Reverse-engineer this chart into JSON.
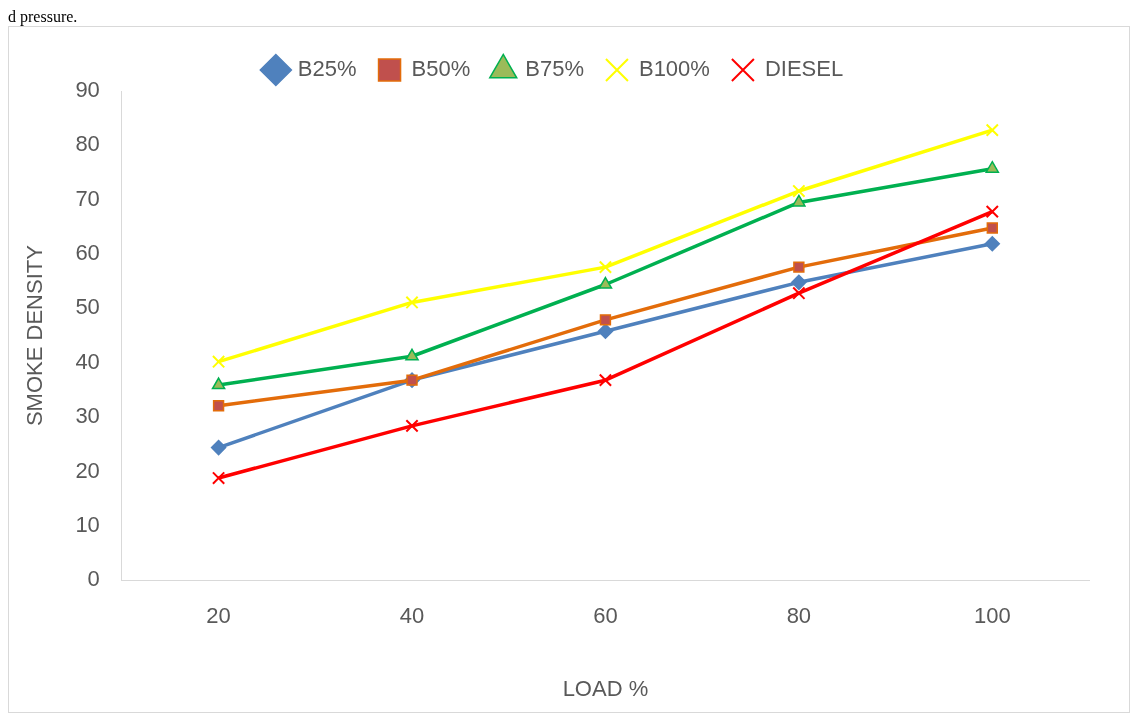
{
  "chart_data": {
    "type": "line",
    "xlabel": "LOAD %",
    "ylabel": "SMOKE DENSITY",
    "annotations": [
      "d pressure."
    ],
    "categories": [
      "20",
      "40",
      "60",
      "80",
      "100"
    ],
    "ylim": [
      0,
      90
    ],
    "yticks": [
      0,
      10,
      20,
      30,
      40,
      50,
      60,
      70,
      80,
      90
    ],
    "grid": false,
    "legend": "top",
    "series": [
      {
        "name": "B25%",
        "color": "#4f81bd",
        "marker": "diamond",
        "values": [
          24.4,
          36.8,
          45.8,
          54.8,
          61.9
        ]
      },
      {
        "name": "B50%",
        "color": "#e36c0a",
        "marker": "square",
        "values": [
          32.1,
          36.8,
          47.9,
          57.6,
          64.8
        ]
      },
      {
        "name": "B75%",
        "color": "#00b050",
        "marker": "triangle",
        "values": [
          35.9,
          41.2,
          54.4,
          69.5,
          75.7
        ]
      },
      {
        "name": "B100%",
        "color": "#ffff00",
        "marker": "cross",
        "values": [
          40.2,
          51.1,
          57.6,
          71.6,
          82.8
        ]
      },
      {
        "name": "DIESEL",
        "color": "#ff0000",
        "marker": "cross",
        "values": [
          18.8,
          28.4,
          36.8,
          52.8,
          67.8
        ]
      }
    ]
  }
}
